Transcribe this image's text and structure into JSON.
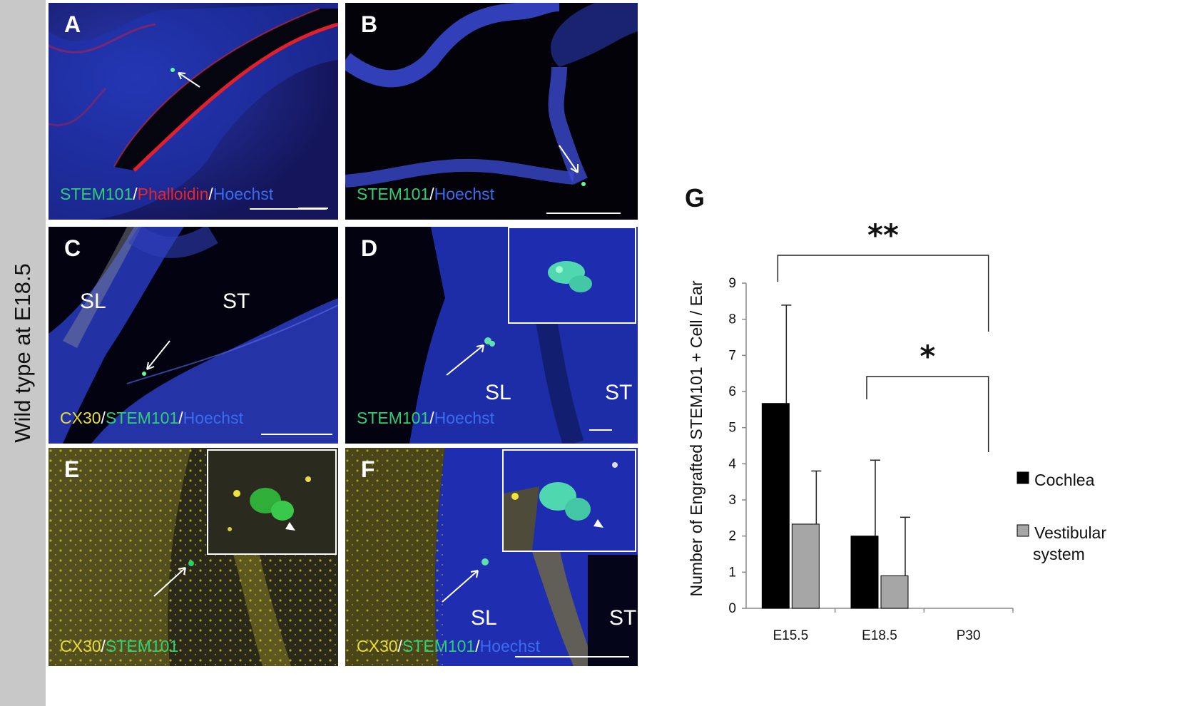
{
  "side_label": "Wild type at E18.5",
  "panels": {
    "A": {
      "letter": "A",
      "caption": [
        "STEM101",
        "/",
        "Phalloidin",
        "/",
        "Hoechst"
      ]
    },
    "B": {
      "letter": "B",
      "caption": [
        "STEM101",
        "/",
        "Hoechst"
      ]
    },
    "C": {
      "letter": "C",
      "caption": [
        "CX30",
        "/",
        "STEM101",
        "/",
        "Hoechst"
      ],
      "labels": [
        "SL",
        "ST"
      ]
    },
    "D": {
      "letter": "D",
      "caption": [
        "STEM101",
        "/",
        "Hoechst"
      ],
      "labels": [
        "SL",
        "ST"
      ]
    },
    "E": {
      "letter": "E",
      "caption": [
        "CX30",
        "/",
        "STEM101"
      ]
    },
    "F": {
      "letter": "F",
      "caption": [
        "CX30",
        "/",
        "STEM101",
        "/",
        "Hoechst"
      ],
      "labels": [
        "SL",
        "ST"
      ]
    }
  },
  "colors": {
    "stem101": "#2fcf74",
    "phalloidin": "#e8242a",
    "hoechst": "#3a6cf0",
    "cx30": "#e6dc3a",
    "cochlea": "#000000",
    "vestibular": "#a6a6a6"
  },
  "chart_data": {
    "panel_letter": "G",
    "type": "bar",
    "categories": [
      "E15.5",
      "E18.5",
      "P30"
    ],
    "series": [
      {
        "name": "Cochlea",
        "values": [
          5.67,
          2.0,
          0
        ],
        "errors": [
          2.72,
          2.1,
          0
        ]
      },
      {
        "name": "Vestibular system",
        "values": [
          2.33,
          0.9,
          0
        ],
        "errors": [
          1.47,
          1.62,
          0
        ]
      }
    ],
    "ylabel": "Number of  Engrafted STEM101 + Cell / Ear",
    "xlabel": "",
    "ylim": [
      0,
      9
    ],
    "yticks": [
      0,
      1,
      2,
      3,
      4,
      5,
      6,
      7,
      8,
      9
    ],
    "legend_position": "right",
    "grid": false,
    "significance": [
      {
        "from": "E15.5",
        "to": "P30",
        "label": "**"
      },
      {
        "from": "E18.5",
        "to": "P30",
        "label": "*"
      }
    ]
  }
}
